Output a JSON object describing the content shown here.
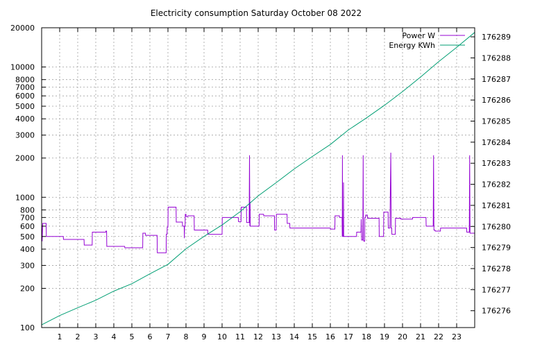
{
  "chart_data": {
    "type": "line",
    "title": "Electricity consumption Saturday October 08 2022",
    "grid": true,
    "legend_placement": "top-right",
    "x_axis": {
      "range": [
        0,
        24
      ],
      "tick_values": [
        1,
        2,
        3,
        4,
        5,
        6,
        7,
        8,
        9,
        10,
        11,
        12,
        13,
        14,
        15,
        16,
        17,
        18,
        19,
        20,
        21,
        22,
        23
      ],
      "tick_labels": [
        "1",
        "2",
        "3",
        "4",
        "5",
        "6",
        "7",
        "8",
        "9",
        "10",
        "11",
        "12",
        "13",
        "14",
        "15",
        "16",
        "17",
        "18",
        "19",
        "20",
        "21",
        "22",
        "23"
      ]
    },
    "y_left": {
      "scale": "log",
      "range": [
        100,
        20000
      ],
      "ticks": [
        {
          "value": 100,
          "label": "100"
        },
        {
          "value": 200,
          "label": "200"
        },
        {
          "value": 300,
          "label": "300"
        },
        {
          "value": 400,
          "label": "400"
        },
        {
          "value": 500,
          "label": "500"
        },
        {
          "value": 600,
          "label": "600"
        },
        {
          "value": 700,
          "label": "700"
        },
        {
          "value": 800,
          "label": "800"
        },
        {
          "value": 1000,
          "label": "1000"
        },
        {
          "value": 2000,
          "label": "2000"
        },
        {
          "value": 3000,
          "label": "3000"
        },
        {
          "value": 4000,
          "label": "4000"
        },
        {
          "value": 5000,
          "label": "5000"
        },
        {
          "value": 6000,
          "label": "6000"
        },
        {
          "value": 7000,
          "label": "7000"
        },
        {
          "value": 8000,
          "label": "8000"
        },
        {
          "value": 10000,
          "label": "10000"
        },
        {
          "value": 20000,
          "label": "20000"
        }
      ]
    },
    "y_right": {
      "scale": "linear",
      "range": [
        176275.2,
        176289.43
      ],
      "tick_values": [
        176276,
        176277,
        176278,
        176279,
        176280,
        176281,
        176282,
        176283,
        176284,
        176285,
        176286,
        176287,
        176288,
        176289
      ],
      "tick_labels": [
        "176276",
        "176277",
        "176278",
        "176279",
        "176280",
        "176281",
        "176282",
        "176283",
        "176284",
        "176285",
        "176286",
        "176287",
        "176288",
        "176289"
      ]
    },
    "series": [
      {
        "name": "Power W",
        "axis": "left",
        "color": "#9400d3",
        "step": true,
        "points": [
          [
            0,
            630
          ],
          [
            0.03,
            460
          ],
          [
            0.06,
            630
          ],
          [
            0.25,
            630
          ],
          [
            0.26,
            500
          ],
          [
            1.2,
            500
          ],
          [
            1.21,
            475
          ],
          [
            2.35,
            475
          ],
          [
            2.36,
            430
          ],
          [
            2.8,
            430
          ],
          [
            2.81,
            540
          ],
          [
            3.55,
            540
          ],
          [
            3.56,
            550
          ],
          [
            3.6,
            550
          ],
          [
            3.61,
            420
          ],
          [
            4.6,
            420
          ],
          [
            4.61,
            410
          ],
          [
            5.6,
            410
          ],
          [
            5.61,
            530
          ],
          [
            5.75,
            530
          ],
          [
            5.76,
            510
          ],
          [
            6.4,
            510
          ],
          [
            6.41,
            375
          ],
          [
            6.9,
            375
          ],
          [
            6.91,
            520
          ],
          [
            6.95,
            520
          ],
          [
            6.96,
            590
          ],
          [
            7.0,
            590
          ],
          [
            7.01,
            840
          ],
          [
            7.45,
            840
          ],
          [
            7.46,
            645
          ],
          [
            7.8,
            645
          ],
          [
            7.81,
            600
          ],
          [
            7.9,
            600
          ],
          [
            7.91,
            485
          ],
          [
            7.92,
            600
          ],
          [
            7.95,
            600
          ],
          [
            7.96,
            740
          ],
          [
            8.0,
            740
          ],
          [
            8.01,
            710
          ],
          [
            8.1,
            710
          ],
          [
            8.11,
            720
          ],
          [
            8.45,
            720
          ],
          [
            8.46,
            560
          ],
          [
            9.2,
            560
          ],
          [
            9.21,
            520
          ],
          [
            10.0,
            520
          ],
          [
            10.01,
            700
          ],
          [
            10.9,
            700
          ],
          [
            10.91,
            650
          ],
          [
            11.05,
            650
          ],
          [
            11.06,
            840
          ],
          [
            11.35,
            840
          ],
          [
            11.36,
            640
          ],
          [
            11.5,
            640
          ],
          [
            11.52,
            2100
          ],
          [
            11.54,
            600
          ],
          [
            11.55,
            920
          ],
          [
            11.56,
            600
          ],
          [
            12.05,
            600
          ],
          [
            12.06,
            740
          ],
          [
            12.3,
            740
          ],
          [
            12.31,
            720
          ],
          [
            12.9,
            720
          ],
          [
            12.91,
            560
          ],
          [
            13.0,
            560
          ],
          [
            13.01,
            740
          ],
          [
            13.6,
            740
          ],
          [
            13.61,
            630
          ],
          [
            13.75,
            630
          ],
          [
            13.76,
            580
          ],
          [
            16.0,
            580
          ],
          [
            16.01,
            570
          ],
          [
            16.25,
            570
          ],
          [
            16.26,
            720
          ],
          [
            16.5,
            720
          ],
          [
            16.51,
            700
          ],
          [
            16.65,
            700
          ],
          [
            16.66,
            500
          ],
          [
            16.67,
            2100
          ],
          [
            16.68,
            500
          ],
          [
            16.72,
            500
          ],
          [
            16.73,
            1300
          ],
          [
            16.74,
            500
          ],
          [
            17.45,
            500
          ],
          [
            17.46,
            540
          ],
          [
            17.7,
            540
          ],
          [
            17.71,
            680
          ],
          [
            17.73,
            470
          ],
          [
            17.8,
            470
          ],
          [
            17.82,
            2100
          ],
          [
            17.83,
            470
          ],
          [
            17.86,
            460
          ],
          [
            17.9,
            460
          ],
          [
            17.91,
            700
          ],
          [
            17.95,
            700
          ],
          [
            17.96,
            730
          ],
          [
            18.05,
            730
          ],
          [
            18.06,
            690
          ],
          [
            18.7,
            690
          ],
          [
            18.71,
            500
          ],
          [
            18.95,
            500
          ],
          [
            18.96,
            770
          ],
          [
            19.2,
            770
          ],
          [
            19.21,
            580
          ],
          [
            19.3,
            580
          ],
          [
            19.35,
            2200
          ],
          [
            19.37,
            580
          ],
          [
            19.4,
            580
          ],
          [
            19.41,
            520
          ],
          [
            19.6,
            520
          ],
          [
            19.61,
            690
          ],
          [
            19.9,
            690
          ],
          [
            19.91,
            680
          ],
          [
            20.55,
            680
          ],
          [
            20.56,
            700
          ],
          [
            21.3,
            700
          ],
          [
            21.31,
            600
          ],
          [
            21.7,
            600
          ],
          [
            21.72,
            2100
          ],
          [
            21.74,
            560
          ],
          [
            21.8,
            560
          ],
          [
            21.81,
            550
          ],
          [
            22.1,
            550
          ],
          [
            22.11,
            580
          ],
          [
            23.55,
            580
          ],
          [
            23.56,
            540
          ],
          [
            23.7,
            540
          ],
          [
            23.72,
            2100
          ],
          [
            23.74,
            530
          ],
          [
            23.99,
            530
          ]
        ]
      },
      {
        "name": "Energy KWh",
        "axis": "right",
        "color": "#009e73",
        "step": false,
        "points": [
          [
            0,
            176275.33
          ],
          [
            1,
            176275.77
          ],
          [
            2,
            176276.14
          ],
          [
            3,
            176276.5
          ],
          [
            4,
            176276.93
          ],
          [
            5,
            176277.28
          ],
          [
            6,
            176277.75
          ],
          [
            7,
            176278.2
          ],
          [
            8,
            176278.94
          ],
          [
            9,
            176279.53
          ],
          [
            10,
            176280.07
          ],
          [
            11,
            176280.7
          ],
          [
            12,
            176281.45
          ],
          [
            13,
            176282.08
          ],
          [
            14,
            176282.73
          ],
          [
            15,
            176283.32
          ],
          [
            16,
            176283.89
          ],
          [
            17,
            176284.58
          ],
          [
            18,
            176285.15
          ],
          [
            19,
            176285.75
          ],
          [
            20,
            176286.4
          ],
          [
            21,
            176287.09
          ],
          [
            22,
            176287.82
          ],
          [
            23,
            176288.5
          ],
          [
            24,
            176289.21
          ]
        ]
      }
    ]
  }
}
